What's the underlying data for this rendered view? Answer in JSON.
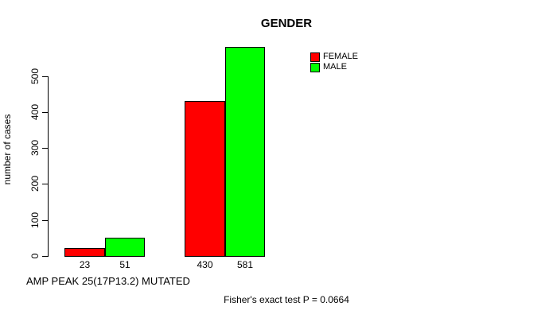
{
  "title": "GENDER",
  "y_axis": {
    "label": "number of cases"
  },
  "bottom_label": "AMP PEAK 25(17P13.2) MUTATED",
  "stat_text": "Fisher's exact test P = 0.0664",
  "legend": {
    "items": [
      {
        "label": "FEMALE",
        "color": "#ff0000"
      },
      {
        "label": "MALE",
        "color": "#00ff00"
      }
    ]
  },
  "chart_data": {
    "type": "bar",
    "title": "GENDER",
    "xlabel": "AMP PEAK 25(17P13.2) MUTATED",
    "ylabel": "number of cases",
    "categories": [
      "",
      ""
    ],
    "series": [
      {
        "name": "FEMALE",
        "color": "#ff0000",
        "values": [
          23,
          430
        ]
      },
      {
        "name": "MALE",
        "color": "#00ff00",
        "values": [
          51,
          581
        ]
      }
    ],
    "bar_value_labels": [
      "23",
      "51",
      "430",
      "581"
    ],
    "yticks": [
      0,
      100,
      200,
      300,
      400,
      500
    ],
    "ylim": [
      0,
      581
    ],
    "grid": false,
    "legend_position": "top-right",
    "annotation": "Fisher's exact test P = 0.0664"
  }
}
